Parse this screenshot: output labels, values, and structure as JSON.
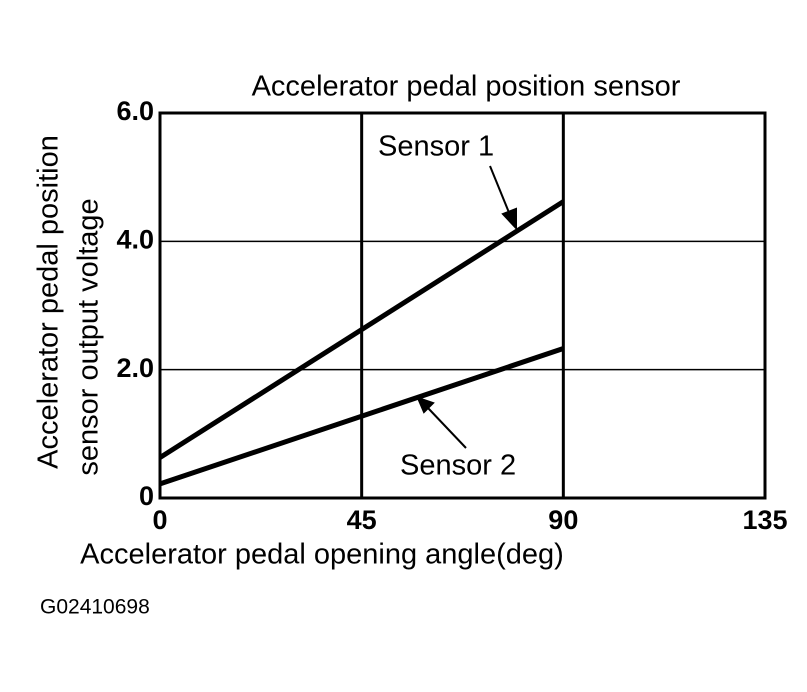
{
  "chart_data": {
    "type": "line",
    "title": "Accelerator pedal position sensor",
    "xlabel": "Accelerator pedal opening angle(deg)",
    "ylabel": [
      "Accelerator pedal position",
      "sensor output voltage"
    ],
    "figure_id": "G02410698",
    "x": [
      0,
      90
    ],
    "series": [
      {
        "name": "Sensor 1",
        "color": "#000000",
        "values": [
          0.63,
          4.62
        ]
      },
      {
        "name": "Sensor 2",
        "color": "#000000",
        "values": [
          0.22,
          2.33
        ]
      }
    ],
    "xlim": [
      0,
      135
    ],
    "xticks": [
      0,
      45,
      90,
      135
    ],
    "ylim": [
      0,
      6
    ],
    "yticks": [
      0,
      {
        "value": 2,
        "label": "2.0"
      },
      {
        "value": 4,
        "label": "4.0"
      },
      {
        "value": 6,
        "label": "6.0"
      }
    ],
    "grid": true
  }
}
